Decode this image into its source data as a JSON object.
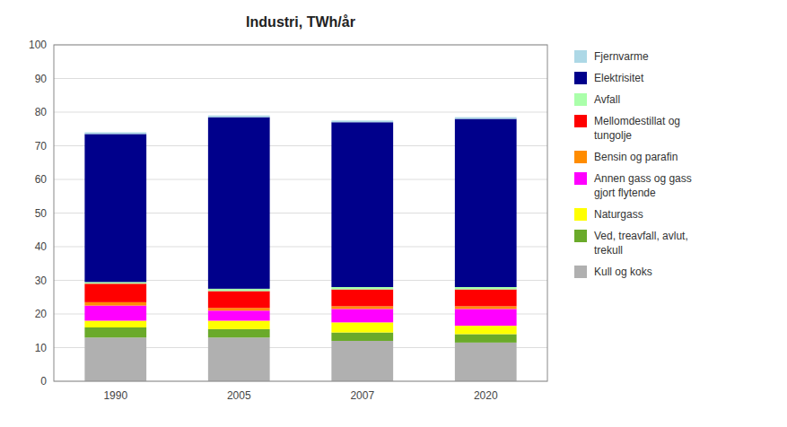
{
  "chart_data": {
    "type": "bar",
    "title": "Industri, TWh/år",
    "categories": [
      "1990",
      "2005",
      "2007",
      "2020"
    ],
    "stacked": true,
    "grid": true,
    "legend": "right",
    "ylim": [
      0,
      100
    ],
    "yticks": [
      0,
      10,
      20,
      30,
      40,
      50,
      60,
      70,
      80,
      90,
      100
    ],
    "series": [
      {
        "name": "Kull og koks",
        "color": "#b0b0b0",
        "values": [
          13.0,
          13.0,
          12.0,
          11.5
        ]
      },
      {
        "name": "Ved, treavfall, avlut,\ntrekull",
        "color": "#6aaa2a",
        "values": [
          3.0,
          2.5,
          2.5,
          2.5
        ]
      },
      {
        "name": "Naturgass",
        "color": "#ffff00",
        "values": [
          2.0,
          2.5,
          3.0,
          2.5
        ]
      },
      {
        "name": "Annen gass og gass\ngjort flytende",
        "color": "#ff00ff",
        "values": [
          4.5,
          3.0,
          4.0,
          5.0
        ]
      },
      {
        "name": "Bensin og parafin",
        "color": "#ff8c00",
        "values": [
          1.0,
          0.8,
          0.8,
          0.8
        ]
      },
      {
        "name": "Mellomdestillat og\ntungolje",
        "color": "#ff0000",
        "values": [
          5.5,
          5.0,
          5.0,
          5.0
        ]
      },
      {
        "name": "Avfall",
        "color": "#aaffaa",
        "values": [
          0.5,
          0.7,
          0.7,
          0.7
        ]
      },
      {
        "name": "Elektrisitet",
        "color": "#00008b",
        "values": [
          44.0,
          51.0,
          49.0,
          50.0
        ]
      },
      {
        "name": "Fjernvarme",
        "color": "#add8e6",
        "values": [
          0.5,
          0.5,
          0.5,
          0.5
        ]
      }
    ]
  }
}
